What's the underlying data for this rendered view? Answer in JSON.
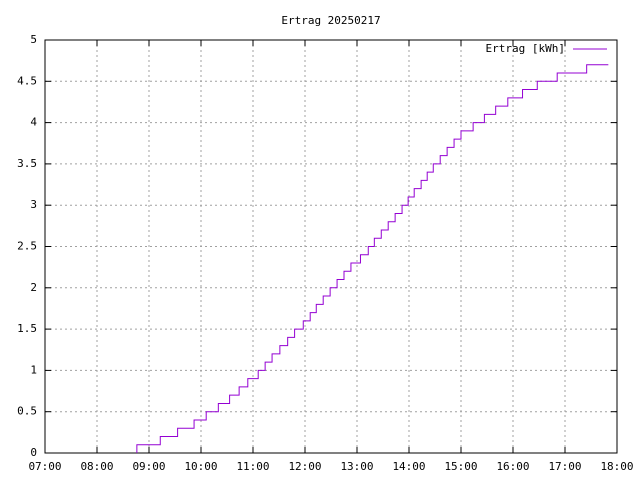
{
  "chart_data": {
    "type": "step",
    "title": "Ertrag 20250217",
    "x": [
      "08:46",
      "08:46",
      "09:13",
      "09:33",
      "09:52",
      "10:06",
      "10:20",
      "10:33",
      "10:44",
      "10:54",
      "11:06",
      "11:14",
      "11:22",
      "11:31",
      "11:40",
      "11:48",
      "11:58",
      "12:06",
      "12:13",
      "12:21",
      "12:29",
      "12:37",
      "12:45",
      "12:53",
      "13:04",
      "13:13",
      "13:20",
      "13:28",
      "13:36",
      "13:44",
      "13:52",
      "13:59",
      "14:06",
      "14:14",
      "14:21",
      "14:28",
      "14:36",
      "14:44",
      "14:52",
      "15:00",
      "15:14",
      "15:27",
      "15:40",
      "15:54",
      "16:11",
      "16:28",
      "16:51",
      "17:25",
      "17:50"
    ],
    "series": [
      {
        "name": "Ertrag [kWh]",
        "color": "#9400d3",
        "values": [
          0,
          0.1,
          0.2,
          0.3,
          0.4,
          0.5,
          0.6,
          0.7,
          0.8,
          0.9,
          1.0,
          1.1,
          1.2,
          1.3,
          1.4,
          1.5,
          1.6,
          1.7,
          1.8,
          1.9,
          2.0,
          2.1,
          2.2,
          2.3,
          2.4,
          2.5,
          2.6,
          2.7,
          2.8,
          2.9,
          3.0,
          3.1,
          3.2,
          3.3,
          3.4,
          3.5,
          3.6,
          3.7,
          3.8,
          3.9,
          4.0,
          4.1,
          4.2,
          4.3,
          4.4,
          4.5,
          4.6,
          4.7,
          4.7
        ]
      }
    ],
    "xlim": [
      "07:00",
      "18:00"
    ],
    "xticks": [
      "07:00",
      "08:00",
      "09:00",
      "10:00",
      "11:00",
      "12:00",
      "13:00",
      "14:00",
      "15:00",
      "16:00",
      "17:00",
      "18:00"
    ],
    "ylim": [
      0,
      5
    ],
    "yticks": [
      0,
      0.5,
      1,
      1.5,
      2,
      2.5,
      3,
      3.5,
      4,
      4.5,
      5
    ],
    "grid": true,
    "legend": "top-right"
  }
}
